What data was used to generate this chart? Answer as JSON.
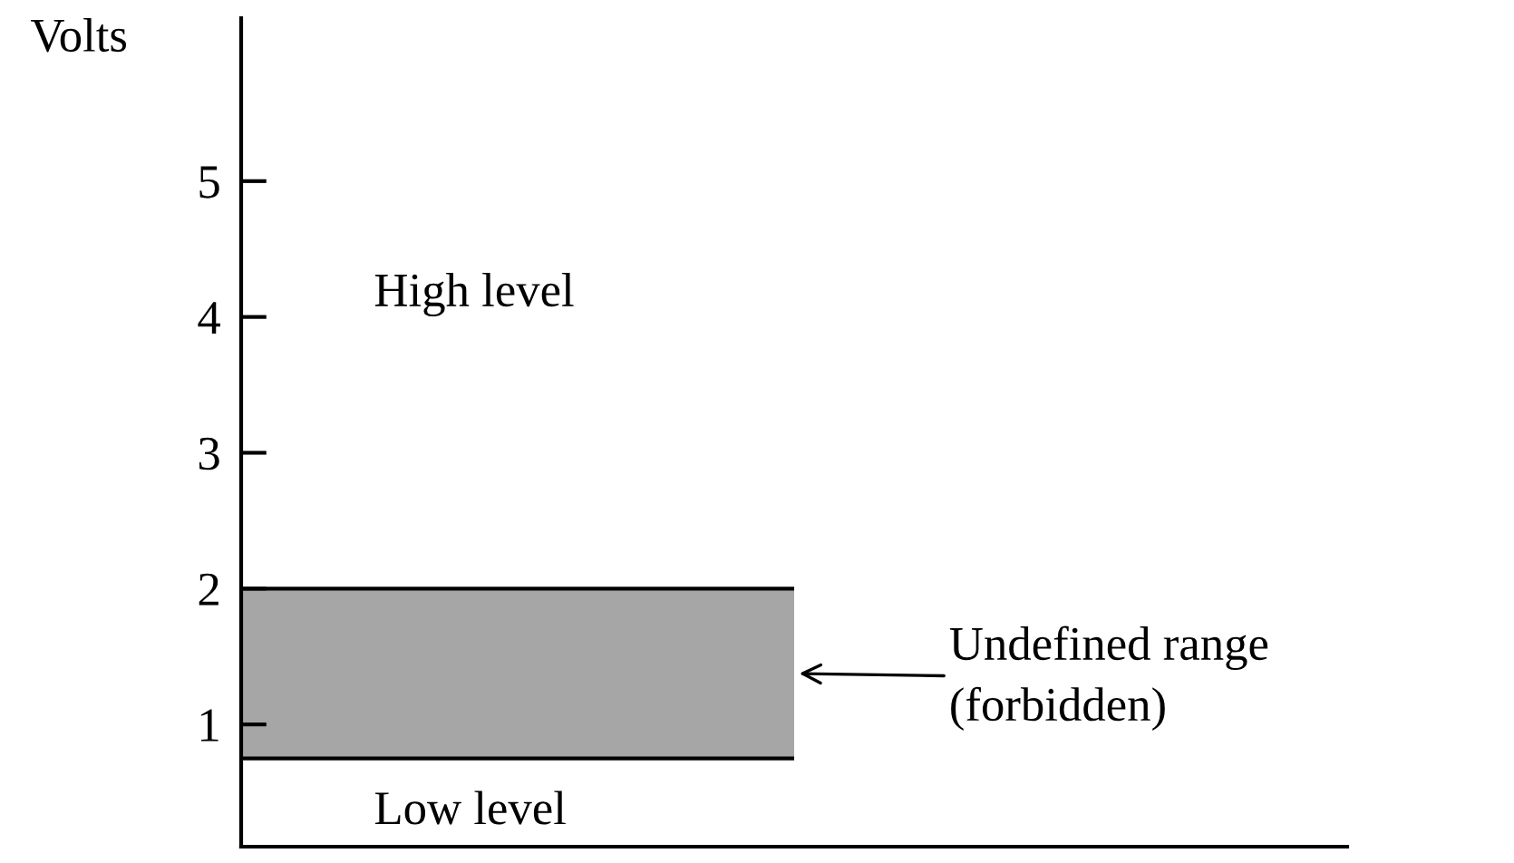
{
  "chart_data": {
    "type": "bar",
    "ylabel": "Volts",
    "ylim": [
      0.1,
      6.2
    ],
    "yticks": [
      1,
      2,
      3,
      4,
      5
    ],
    "tick_labels": "y",
    "categories": [
      null
    ],
    "values": [
      1.25
    ],
    "base": [
      0.75
    ],
    "color": "#a6a6a6",
    "annotations": [
      "High level",
      "Low level",
      "Undefined range\n(forbidden)"
    ]
  }
}
